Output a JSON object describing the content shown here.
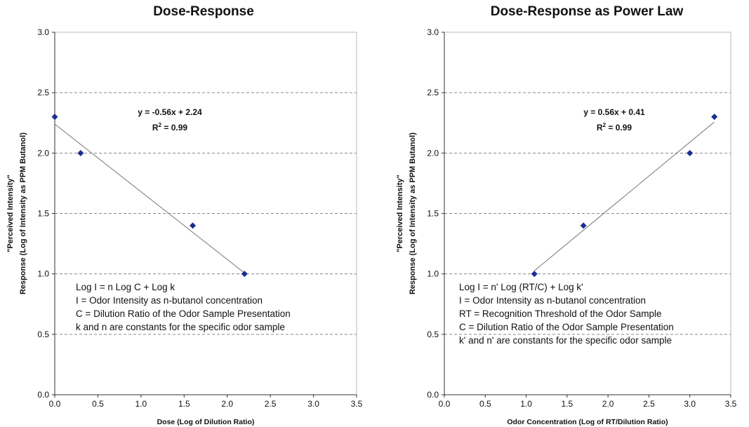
{
  "chart_data": [
    {
      "type": "scatter",
      "title": "Dose-Response",
      "xlabel": "Dose (Log of Dilution Ratio)",
      "ylabel_line1": "\"Perceived Intensity\"",
      "ylabel_line2": "Response (Log of Intensity as PPM Butanol)",
      "xlim": [
        0.0,
        3.5
      ],
      "ylim": [
        0.0,
        3.0
      ],
      "xticks": [
        0.0,
        0.5,
        1.0,
        1.5,
        2.0,
        2.5,
        3.0,
        3.5
      ],
      "yticks": [
        0.0,
        0.5,
        1.0,
        1.5,
        2.0,
        2.5,
        3.0
      ],
      "x_tick_labels": [
        "0.0",
        "0.5",
        "1.0",
        "1.5",
        "2.0",
        "2.5",
        "3.0",
        "3.5"
      ],
      "y_tick_labels": [
        "0.0",
        "0.5",
        "1.0",
        "1.5",
        "2.0",
        "2.5",
        "3.0"
      ],
      "grid": "horizontal dashed",
      "series": [
        {
          "x": [
            0.0,
            0.3,
            1.6,
            2.2
          ],
          "y": [
            2.3,
            2.0,
            1.4,
            1.0
          ],
          "color": "#1a2f8f"
        }
      ],
      "trendline": {
        "slope": -0.56,
        "intercept": 2.24,
        "x_range": [
          0.0,
          2.2
        ],
        "color": "#777777"
      },
      "equation": "y = -0.56x + 2.24",
      "r2_label": "R",
      "r2_sup": "2",
      "r2_value": " = 0.99",
      "notes": [
        "Log I = n Log C + Log k",
        "I = Odor Intensity as n-butanol concentration",
        "C = Dilution Ratio of the Odor Sample Presentation",
        "k and n are constants for the specific odor sample"
      ]
    },
    {
      "type": "scatter",
      "title": "Dose-Response as Power Law",
      "xlabel": "Odor Concentration (Log of RT/Dilution Ratio)",
      "ylabel_line1": "\"Perceived Intensity\"",
      "ylabel_line2": "Response (Log of Intensity as PPM Butanol)",
      "xlim": [
        0.0,
        3.5
      ],
      "ylim": [
        0.0,
        3.0
      ],
      "xticks": [
        0.0,
        0.5,
        1.0,
        1.5,
        2.0,
        2.5,
        3.0,
        3.5
      ],
      "yticks": [
        0.0,
        0.5,
        1.0,
        1.5,
        2.0,
        2.5,
        3.0
      ],
      "x_tick_labels": [
        "0.0",
        "0.5",
        "1.0",
        "1.5",
        "2.0",
        "2.5",
        "3.0",
        "3.5"
      ],
      "y_tick_labels": [
        "0.0",
        "0.5",
        "1.0",
        "1.5",
        "2.0",
        "2.5",
        "3.0"
      ],
      "grid": "horizontal dashed",
      "series": [
        {
          "x": [
            1.1,
            1.7,
            3.0,
            3.3
          ],
          "y": [
            1.0,
            1.4,
            2.0,
            2.3
          ],
          "color": "#1a2f8f"
        }
      ],
      "trendline": {
        "slope": 0.56,
        "intercept": 0.41,
        "x_range": [
          1.1,
          3.3
        ],
        "color": "#777777"
      },
      "equation": "y = 0.56x + 0.41",
      "r2_label": "R",
      "r2_sup": "2",
      "r2_value": " = 0.99",
      "notes": [
        "Log I = n' Log (RT/C) + Log k'",
        "I = Odor Intensity as n-butanol concentration",
        "RT = Recognition Threshold of the Odor Sample",
        "C = Dilution Ratio of the Odor Sample Presentation",
        "k' and n' are constants for the specific odor sample"
      ]
    }
  ]
}
